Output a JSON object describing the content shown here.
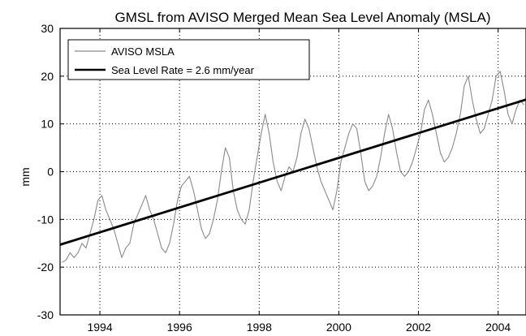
{
  "chart_data": {
    "type": "line",
    "title": "GMSL from AVISO Merged Mean Sea Level Anomaly (MSLA)",
    "xlabel": "",
    "ylabel": "mm",
    "xlim": [
      1993.0,
      2004.7
    ],
    "ylim": [
      -30,
      30
    ],
    "x_ticks": [
      1994,
      1996,
      1998,
      2000,
      2002,
      2004
    ],
    "y_ticks": [
      -30,
      -20,
      -10,
      0,
      10,
      20,
      30
    ],
    "grid": true,
    "legend_position": "top-left",
    "series": [
      {
        "name": "AVISO MSLA",
        "color": "#8a8a8a",
        "x": [
          1993.05,
          1993.15,
          1993.25,
          1993.35,
          1993.45,
          1993.55,
          1993.65,
          1993.75,
          1993.85,
          1993.95,
          1994.05,
          1994.15,
          1994.25,
          1994.35,
          1994.45,
          1994.55,
          1994.65,
          1994.75,
          1994.85,
          1994.95,
          1995.05,
          1995.15,
          1995.25,
          1995.35,
          1995.45,
          1995.55,
          1995.65,
          1995.75,
          1995.85,
          1995.95,
          1996.05,
          1996.15,
          1996.25,
          1996.35,
          1996.45,
          1996.55,
          1996.65,
          1996.75,
          1996.85,
          1996.95,
          1997.05,
          1997.15,
          1997.25,
          1997.35,
          1997.45,
          1997.55,
          1997.65,
          1997.75,
          1997.85,
          1997.95,
          1998.05,
          1998.15,
          1998.25,
          1998.35,
          1998.45,
          1998.55,
          1998.65,
          1998.75,
          1998.85,
          1998.95,
          1999.05,
          1999.15,
          1999.25,
          1999.35,
          1999.45,
          1999.55,
          1999.65,
          1999.75,
          1999.85,
          1999.95,
          2000.05,
          2000.15,
          2000.25,
          2000.35,
          2000.45,
          2000.55,
          2000.65,
          2000.75,
          2000.85,
          2000.95,
          2001.05,
          2001.15,
          2001.25,
          2001.35,
          2001.45,
          2001.55,
          2001.65,
          2001.75,
          2001.85,
          2001.95,
          2002.05,
          2002.15,
          2002.25,
          2002.35,
          2002.45,
          2002.55,
          2002.65,
          2002.75,
          2002.85,
          2002.95,
          2003.05,
          2003.15,
          2003.25,
          2003.35,
          2003.45,
          2003.55,
          2003.65,
          2003.75,
          2003.85,
          2003.95,
          2004.05,
          2004.15,
          2004.25,
          2004.35,
          2004.45,
          2004.55,
          2004.65
        ],
        "y": [
          -19,
          -18.5,
          -17,
          -18,
          -17,
          -15,
          -16,
          -13,
          -10,
          -6,
          -5,
          -8,
          -10,
          -12,
          -15,
          -18,
          -16,
          -15,
          -11,
          -9,
          -7,
          -5,
          -8,
          -10,
          -13,
          -16,
          -17,
          -15,
          -11,
          -6,
          -3,
          -2,
          -1,
          -4,
          -8,
          -12,
          -14,
          -13,
          -10,
          -6,
          0,
          5,
          3,
          -4,
          -8,
          -10,
          -11,
          -8,
          -2,
          3,
          8,
          12,
          8,
          2,
          -2,
          -4,
          -1,
          1,
          0,
          3,
          8,
          11,
          9,
          5,
          1,
          -2,
          -4,
          -6,
          -8,
          -4,
          2,
          5,
          8,
          10,
          9,
          4,
          -2,
          -4,
          -3,
          -1,
          3,
          8,
          12,
          9,
          4,
          0,
          -1,
          0,
          2,
          5,
          8,
          13,
          15,
          12,
          8,
          4,
          2,
          3,
          5,
          8,
          12,
          18,
          20,
          15,
          11,
          8,
          9,
          12,
          15,
          20,
          21,
          17,
          12,
          10,
          13,
          15,
          14
        ]
      },
      {
        "name": "Sea Level Rate = 2.6 mm/year",
        "color": "#000000",
        "x": [
          1993.0,
          2004.7
        ],
        "y": [
          -15.3,
          15.1
        ]
      }
    ]
  }
}
